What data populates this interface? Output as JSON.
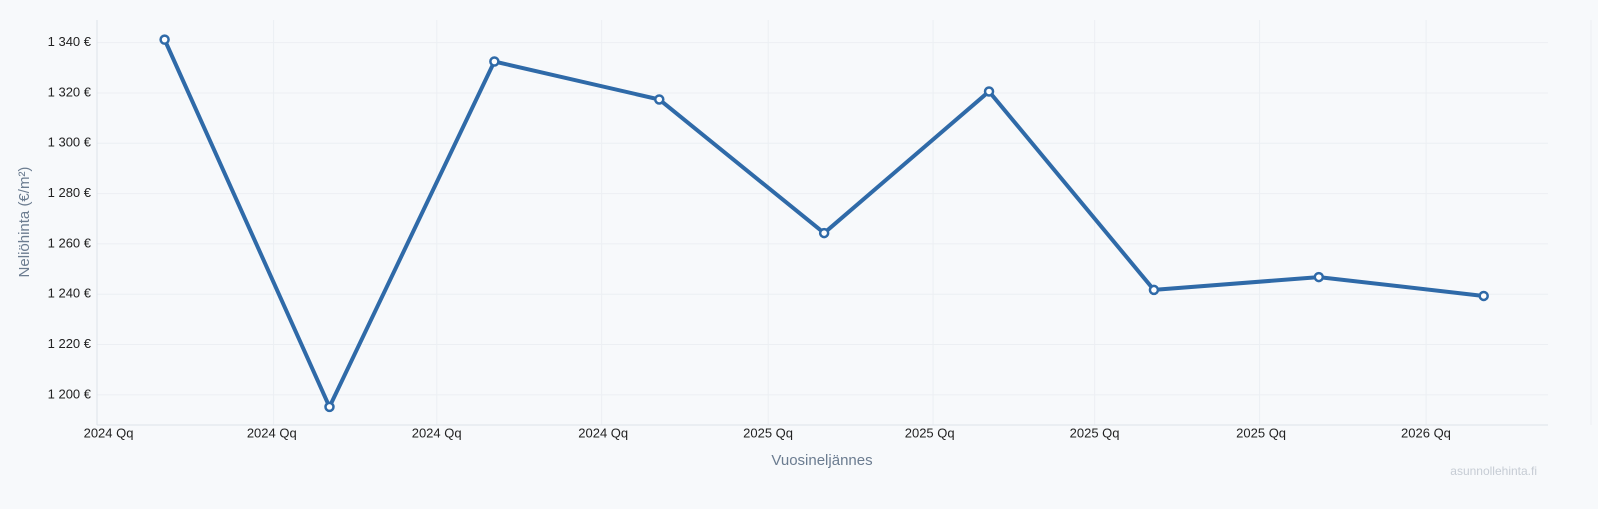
{
  "chart_data": {
    "type": "line",
    "x_label": "Vuosineljännes",
    "y_label": "Neliöhinta (€/m²)",
    "watermark": "asunnollehinta.fi",
    "x": [
      0,
      1,
      2,
      3,
      4,
      5,
      6,
      7,
      8
    ],
    "series": [
      {
        "color": "#2f6aa8",
        "values": [
          1341.2,
          1195.2,
          1332.5,
          1317.4,
          1264.3,
          1320.6,
          1241.7,
          1246.8,
          1239.3
        ]
      }
    ],
    "xlim": [
      -0.41,
      8.39
    ],
    "xticks": [
      {
        "value": -0.34,
        "label": "2024 Qq"
      },
      {
        "value": 0.65,
        "label": "2024 Qq"
      },
      {
        "value": 1.65,
        "label": "2024 Qq"
      },
      {
        "value": 2.66,
        "label": "2024 Qq"
      },
      {
        "value": 3.66,
        "label": "2025 Qq"
      },
      {
        "value": 4.64,
        "label": "2025 Qq"
      },
      {
        "value": 5.64,
        "label": "2025 Qq"
      },
      {
        "value": 6.65,
        "label": "2025 Qq"
      },
      {
        "value": 7.65,
        "label": "2026 Qq"
      }
    ],
    "ylim": [
      1188,
      1349
    ],
    "yticks": [
      {
        "value": 1200,
        "label": "1 200 €"
      },
      {
        "value": 1220,
        "label": "1 220 €"
      },
      {
        "value": 1240,
        "label": "1 240 €"
      },
      {
        "value": 1260,
        "label": "1 260 €"
      },
      {
        "value": 1280,
        "label": "1 280 €"
      },
      {
        "value": 1300,
        "label": "1 300 €"
      },
      {
        "value": 1320,
        "label": "1 320 €"
      },
      {
        "value": 1340,
        "label": "1 340 €"
      }
    ],
    "grid": true
  }
}
